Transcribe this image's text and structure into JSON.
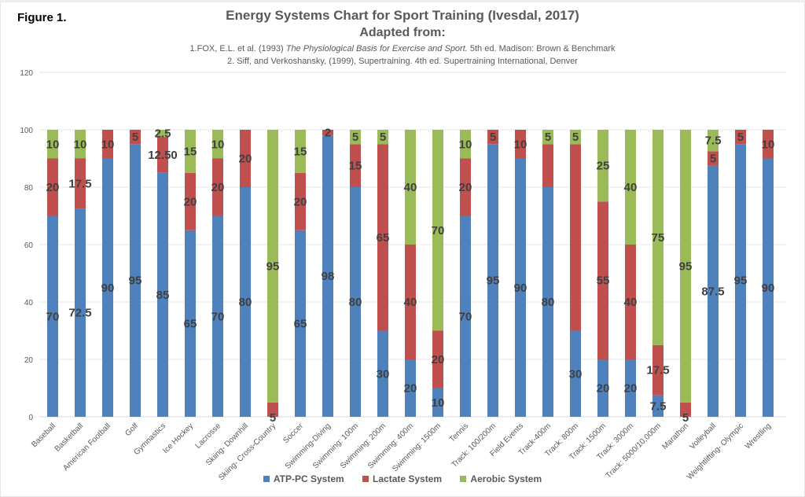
{
  "figure_label": "Figure 1.",
  "chart_data": {
    "type": "bar",
    "stacked": true,
    "title": "Energy Systems Chart for Sport Training (Ivesdal, 2017)",
    "subtitle": "Adapted from:",
    "sources": [
      {
        "prefix": "1.FOX, E.L. et al. (1993) ",
        "italic": "The Physiological Basis for Exercise and Sport.",
        "suffix": " 5th ed. Madison: Brown & Benchmark"
      },
      {
        "prefix": "2. Siff, and Verkoshansky, (1999),  Supertraining. 4th ed. Supertraining International, Denver",
        "italic": "",
        "suffix": ""
      }
    ],
    "xlabel": "",
    "ylabel": "",
    "ylim": [
      0,
      120
    ],
    "yticks": [
      0,
      20,
      40,
      60,
      80,
      100,
      120
    ],
    "grid": true,
    "legend_position": "bottom",
    "categories": [
      "Baseball",
      "Basketball",
      "American Football",
      "Golf",
      "Gymnastics",
      "Ice Hockey",
      "Lacrosse",
      "Skiing- Downhill",
      "Skiing- Cross-Country",
      "Soccer",
      "Swimming-Diving",
      "Swimming: 100m",
      "Swimming: 200m",
      "Swimming: 400m",
      "Swimming: 1500m",
      "Tennis",
      "Track: 100/200m",
      "Field Events",
      "Track-400m",
      "Track: 800m",
      "Track: 1500m",
      "Track: 3000m",
      "Track: 5000/10,000m",
      "Marathon",
      "Volleyball",
      "Weightlifting- Olympic",
      "Wrestling"
    ],
    "series": [
      {
        "name": "ATP-PC System",
        "color": "#4f81bd",
        "values": [
          70,
          72.5,
          90,
          95,
          85,
          65,
          70,
          80,
          0,
          65,
          98,
          80,
          30,
          20,
          10,
          70,
          95,
          90,
          80,
          30,
          20,
          20,
          7.5,
          0,
          87.5,
          95,
          90
        ],
        "labels": [
          "70",
          "72.5",
          "90",
          "95",
          "85",
          "65",
          "70",
          "80",
          null,
          "65",
          "98",
          "80",
          "30",
          "20",
          "10",
          "70",
          "95",
          "90",
          "80",
          "30",
          "20",
          "20",
          "7.5",
          null,
          "87.5",
          "95",
          "90"
        ]
      },
      {
        "name": "Lactate System",
        "color": "#c0504d",
        "values": [
          20,
          17.5,
          10,
          5,
          12.5,
          20,
          20,
          20,
          5,
          20,
          2,
          15,
          65,
          40,
          20,
          20,
          5,
          10,
          15,
          65,
          55,
          40,
          17.5,
          5,
          5,
          5,
          10
        ],
        "labels": [
          "20",
          "17.5",
          "10",
          "5",
          "12.50",
          "20",
          "20",
          "20",
          "5",
          "20",
          "2",
          "15",
          "65",
          "40",
          "20",
          "20",
          "5",
          "10",
          null,
          null,
          "55",
          "40",
          "17.5",
          "5",
          "5",
          "5",
          "10"
        ]
      },
      {
        "name": "Aerobic System",
        "color": "#9bbb59",
        "values": [
          10,
          10,
          0,
          0,
          2.5,
          15,
          10,
          0,
          95,
          15,
          0,
          5,
          5,
          40,
          70,
          10,
          0,
          0,
          5,
          5,
          25,
          40,
          75,
          95,
          7.5,
          0,
          0
        ],
        "labels": [
          "10",
          "10",
          null,
          null,
          "2.5",
          "15",
          "10",
          null,
          "95",
          "15",
          null,
          "5",
          "5",
          "40",
          "70",
          "10",
          null,
          null,
          "5",
          "5",
          "25",
          "40",
          "75",
          "95",
          "7.5",
          null,
          null
        ]
      }
    ]
  }
}
